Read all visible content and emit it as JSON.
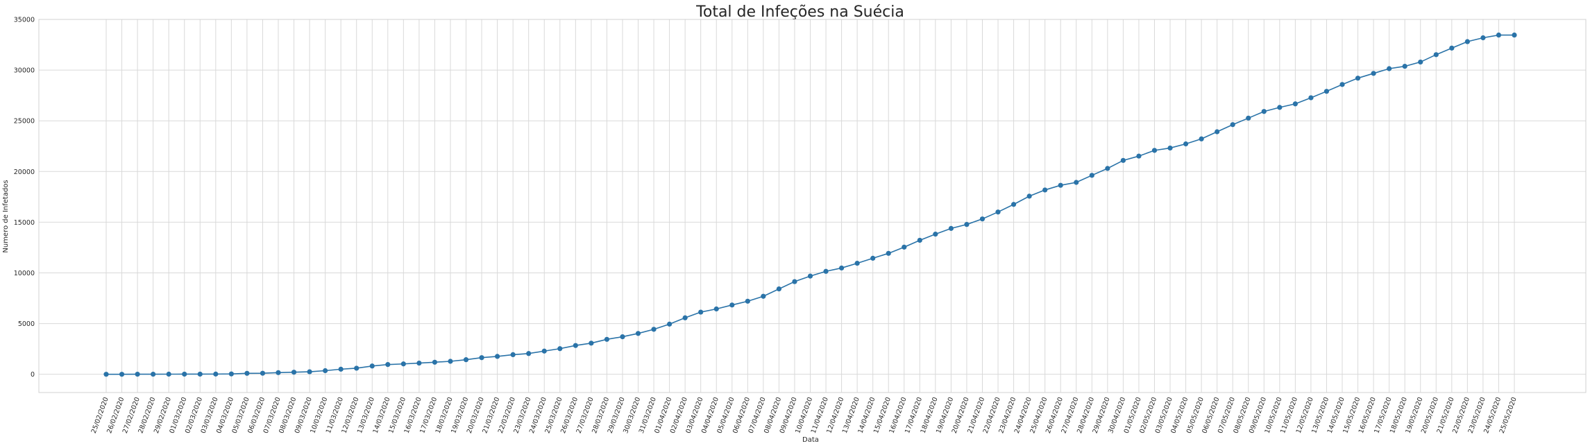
{
  "chart_data": {
    "type": "line",
    "title": "Total de Infeções na Suécia",
    "xlabel": "Data",
    "ylabel": "Numero de Infetados",
    "ylim": [
      -1800,
      35000
    ],
    "yticks": [
      0,
      5000,
      10000,
      15000,
      20000,
      25000,
      30000,
      35000
    ],
    "grid": true,
    "marker": "circle",
    "series_color": "#2a73a8",
    "x": [
      "25/02/2020",
      "26/02/2020",
      "27/02/2020",
      "28/02/2020",
      "29/02/2020",
      "01/03/2020",
      "02/03/2020",
      "03/03/2020",
      "04/03/2020",
      "05/03/2020",
      "06/03/2020",
      "07/03/2020",
      "08/03/2020",
      "09/03/2020",
      "10/03/2020",
      "11/03/2020",
      "12/03/2020",
      "13/03/2020",
      "14/03/2020",
      "15/03/2020",
      "16/03/2020",
      "17/03/2020",
      "18/03/2020",
      "19/03/2020",
      "20/03/2020",
      "21/03/2020",
      "22/03/2020",
      "23/03/2020",
      "24/03/2020",
      "25/03/2020",
      "26/03/2020",
      "27/03/2020",
      "28/03/2020",
      "29/03/2020",
      "30/03/2020",
      "31/03/2020",
      "01/04/2020",
      "02/04/2020",
      "03/04/2020",
      "04/04/2020",
      "05/04/2020",
      "06/04/2020",
      "07/04/2020",
      "08/04/2020",
      "09/04/2020",
      "10/04/2020",
      "11/04/2020",
      "12/04/2020",
      "13/04/2020",
      "14/04/2020",
      "15/04/2020",
      "16/04/2020",
      "17/04/2020",
      "18/04/2020",
      "19/04/2020",
      "20/04/2020",
      "21/04/2020",
      "22/04/2020",
      "23/04/2020",
      "24/04/2020",
      "25/04/2020",
      "26/04/2020",
      "27/04/2020",
      "28/04/2020",
      "29/04/2020",
      "30/04/2020",
      "01/05/2020",
      "02/05/2020",
      "03/05/2020",
      "04/05/2020",
      "05/05/2020",
      "06/05/2020",
      "07/05/2020",
      "08/05/2020",
      "09/05/2020",
      "10/05/2020",
      "11/05/2020",
      "12/05/2020",
      "13/05/2020",
      "14/05/2020",
      "15/05/2020",
      "16/05/2020",
      "17/05/2020",
      "18/05/2020",
      "19/05/2020",
      "20/05/2020",
      "21/05/2020",
      "22/05/2020",
      "23/05/2020",
      "24/05/2020",
      "25/05/2020"
    ],
    "values": [
      1,
      1,
      7,
      7,
      12,
      14,
      15,
      21,
      35,
      94,
      101,
      161,
      203,
      248,
      355,
      500,
      599,
      814,
      961,
      1022,
      1103,
      1190,
      1279,
      1439,
      1639,
      1763,
      1934,
      2046,
      2286,
      2526,
      2840,
      3069,
      3447,
      3700,
      4028,
      4435,
      4947,
      5568,
      6131,
      6443,
      6830,
      7206,
      7693,
      8419,
      9141,
      9685,
      10151,
      10483,
      10948,
      11445,
      11927,
      12540,
      13216,
      13822,
      14385,
      14777,
      15322,
      16004,
      16755,
      17567,
      18177,
      18640,
      18926,
      19621,
      20302,
      21092,
      21520,
      22082,
      22317,
      22721,
      23216,
      23918,
      24623,
      25265,
      25921,
      26322,
      26670,
      27272,
      27909,
      28582,
      29207,
      29677,
      30143,
      30377,
      30799,
      31523,
      32172,
      32809,
      33188,
      33459,
      33459
    ]
  }
}
